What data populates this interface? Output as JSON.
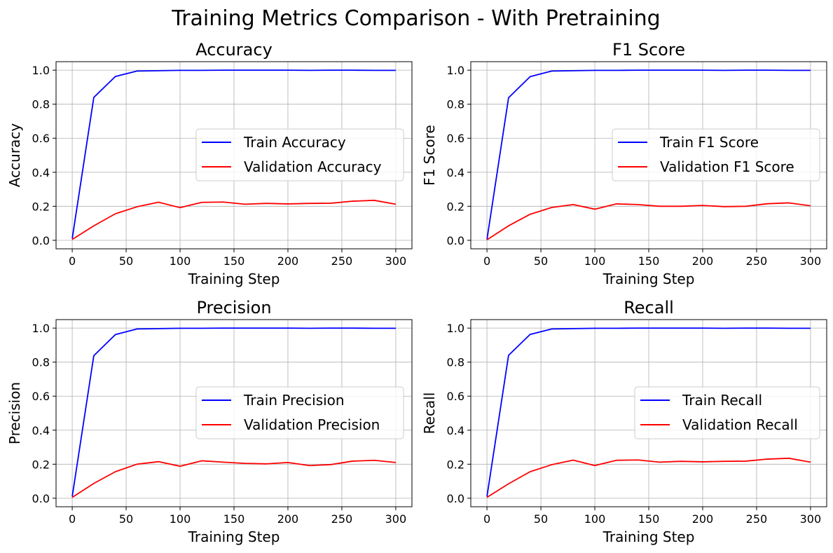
{
  "figure": {
    "suptitle": "Training Metrics Comparison - With Pretraining"
  },
  "chart_data": [
    {
      "type": "line",
      "title": "Accuracy",
      "xlabel": "Training Step",
      "ylabel": "Accuracy",
      "xlim": [
        -15,
        315
      ],
      "ylim": [
        -0.05,
        1.05
      ],
      "xticks": [
        0,
        50,
        100,
        150,
        200,
        250,
        300
      ],
      "yticks": [
        0.0,
        0.2,
        0.4,
        0.6,
        0.8,
        1.0
      ],
      "grid": true,
      "legend": "center-right",
      "x": [
        0,
        20,
        40,
        60,
        80,
        100,
        120,
        140,
        160,
        180,
        200,
        220,
        240,
        260,
        280,
        300
      ],
      "series": [
        {
          "name": "Train Accuracy",
          "color": "#0000ff",
          "values": [
            0.01,
            0.84,
            0.963,
            0.995,
            0.997,
            0.999,
            0.999,
            1.0,
            1.0,
            1.0,
            1.0,
            0.999,
            1.0,
            1.0,
            0.999,
            0.999
          ]
        },
        {
          "name": "Validation Accuracy",
          "color": "#ff0000",
          "values": [
            0.005,
            0.085,
            0.156,
            0.197,
            0.224,
            0.192,
            0.223,
            0.225,
            0.212,
            0.217,
            0.214,
            0.217,
            0.218,
            0.23,
            0.235,
            0.212
          ]
        }
      ]
    },
    {
      "type": "line",
      "title": "F1 Score",
      "xlabel": "Training Step",
      "ylabel": "F1 Score",
      "xlim": [
        -15,
        315
      ],
      "ylim": [
        -0.05,
        1.05
      ],
      "xticks": [
        0,
        50,
        100,
        150,
        200,
        250,
        300
      ],
      "yticks": [
        0.0,
        0.2,
        0.4,
        0.6,
        0.8,
        1.0
      ],
      "grid": true,
      "legend": "center-right",
      "x": [
        0,
        20,
        40,
        60,
        80,
        100,
        120,
        140,
        160,
        180,
        200,
        220,
        240,
        260,
        280,
        300
      ],
      "series": [
        {
          "name": "Train F1 Score",
          "color": "#0000ff",
          "values": [
            0.005,
            0.838,
            0.962,
            0.995,
            0.997,
            0.999,
            0.999,
            1.0,
            1.0,
            1.0,
            1.0,
            0.999,
            1.0,
            1.0,
            0.999,
            0.999
          ]
        },
        {
          "name": "Validation F1 Score",
          "color": "#ff0000",
          "values": [
            0.003,
            0.085,
            0.153,
            0.193,
            0.21,
            0.183,
            0.214,
            0.21,
            0.2,
            0.2,
            0.205,
            0.198,
            0.2,
            0.215,
            0.22,
            0.203
          ]
        }
      ]
    },
    {
      "type": "line",
      "title": "Precision",
      "xlabel": "Training Step",
      "ylabel": "Precision",
      "xlim": [
        -15,
        315
      ],
      "ylim": [
        -0.05,
        1.05
      ],
      "xticks": [
        0,
        50,
        100,
        150,
        200,
        250,
        300
      ],
      "yticks": [
        0.0,
        0.2,
        0.4,
        0.6,
        0.8,
        1.0
      ],
      "grid": true,
      "legend": "center-right",
      "x": [
        0,
        20,
        40,
        60,
        80,
        100,
        120,
        140,
        160,
        180,
        200,
        220,
        240,
        260,
        280,
        300
      ],
      "series": [
        {
          "name": "Train Precision",
          "color": "#0000ff",
          "values": [
            0.01,
            0.838,
            0.962,
            0.995,
            0.997,
            0.999,
            0.999,
            1.0,
            1.0,
            1.0,
            1.0,
            0.999,
            1.0,
            1.0,
            0.999,
            0.999
          ]
        },
        {
          "name": "Validation Precision",
          "color": "#ff0000",
          "values": [
            0.005,
            0.087,
            0.156,
            0.2,
            0.215,
            0.188,
            0.22,
            0.212,
            0.205,
            0.202,
            0.21,
            0.192,
            0.198,
            0.218,
            0.223,
            0.21
          ]
        }
      ]
    },
    {
      "type": "line",
      "title": "Recall",
      "xlabel": "Training Step",
      "ylabel": "Recall",
      "xlim": [
        -15,
        315
      ],
      "ylim": [
        -0.05,
        1.05
      ],
      "xticks": [
        0,
        50,
        100,
        150,
        200,
        250,
        300
      ],
      "yticks": [
        0.0,
        0.2,
        0.4,
        0.6,
        0.8,
        1.0
      ],
      "grid": true,
      "legend": "center-right",
      "x": [
        0,
        20,
        40,
        60,
        80,
        100,
        120,
        140,
        160,
        180,
        200,
        220,
        240,
        260,
        280,
        300
      ],
      "series": [
        {
          "name": "Train Recall",
          "color": "#0000ff",
          "values": [
            0.01,
            0.84,
            0.963,
            0.995,
            0.997,
            0.999,
            0.999,
            1.0,
            1.0,
            1.0,
            1.0,
            0.999,
            1.0,
            1.0,
            0.999,
            0.999
          ]
        },
        {
          "name": "Validation Recall",
          "color": "#ff0000",
          "values": [
            0.005,
            0.085,
            0.156,
            0.197,
            0.224,
            0.192,
            0.223,
            0.225,
            0.212,
            0.217,
            0.214,
            0.217,
            0.218,
            0.23,
            0.235,
            0.212
          ]
        }
      ]
    }
  ]
}
